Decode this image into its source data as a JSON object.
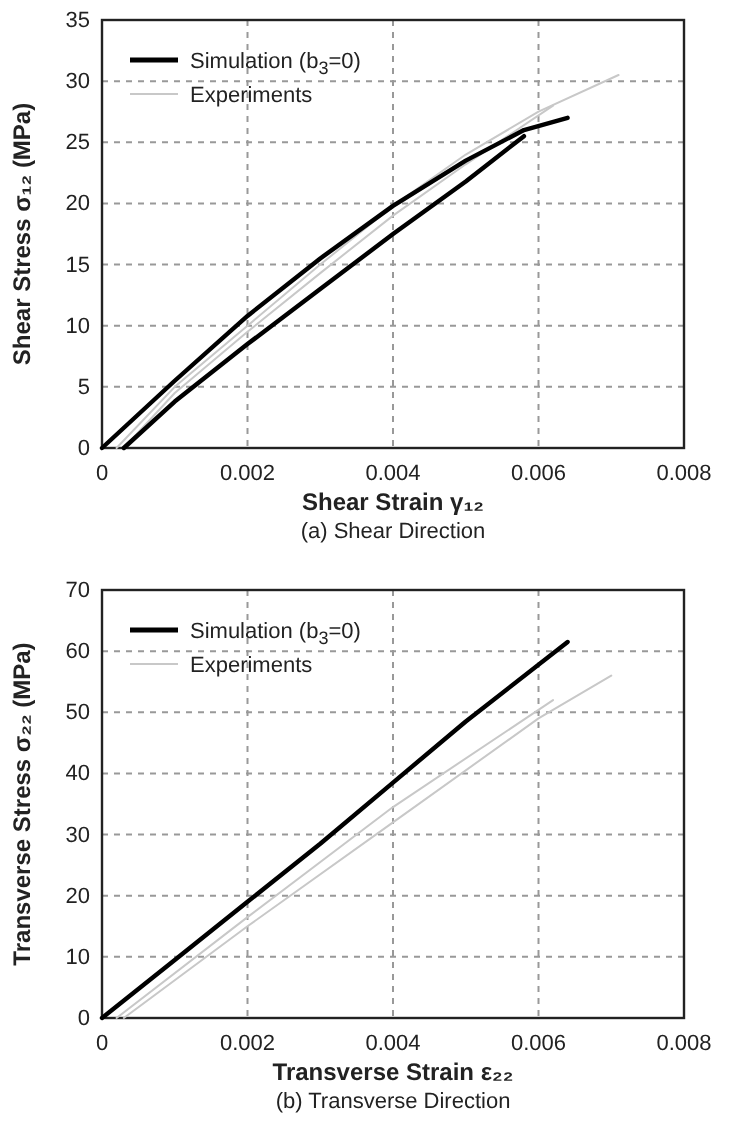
{
  "chart_data": [
    {
      "type": "line",
      "title": "(a) Shear Direction",
      "xlabel": "Shear Strain γ₁₂",
      "ylabel": "Shear Stress σ₁₂ (MPa)",
      "xlim": [
        0,
        0.008
      ],
      "ylim": [
        0,
        35
      ],
      "xticks": [
        0,
        0.002,
        0.004,
        0.006,
        0.008
      ],
      "yticks": [
        0,
        5,
        10,
        15,
        20,
        25,
        30,
        35
      ],
      "grid": true,
      "legend": "top left",
      "marker": "none",
      "line_style": "solid",
      "series": [
        {
          "name": "Simulation (b$_{3}$=0)",
          "color": "#000000",
          "x": [
            0,
            0.001,
            0.002,
            0.003,
            0.004,
            0.005,
            0.0058,
            0.0064
          ],
          "values": [
            0,
            5.5,
            10.8,
            15.5,
            19.8,
            23.5,
            26,
            27
          ]
        },
        {
          "color": "#000000",
          "x": [
            0.0003,
            0.001,
            0.002,
            0.003,
            0.004,
            0.005,
            0.0058
          ],
          "values": [
            0,
            3.8,
            8.5,
            13,
            17.5,
            21.8,
            25.5
          ]
        },
        {
          "name": "Experiments",
          "color": "#c8c8c8",
          "x": [
            0.0002,
            0.001,
            0.002,
            0.003,
            0.004,
            0.005,
            0.006,
            0.0071
          ],
          "values": [
            0,
            5,
            10,
            15,
            19.8,
            24,
            27.5,
            30.5
          ]
        },
        {
          "color": "#c8c8c8",
          "x": [
            0.0003,
            0.001,
            0.002,
            0.003,
            0.004,
            0.005,
            0.0062
          ],
          "values": [
            0,
            4.5,
            9.5,
            14.3,
            19,
            23.2,
            28
          ]
        }
      ]
    },
    {
      "type": "line",
      "title": "(b) Transverse Direction",
      "xlabel": "Transverse Strain ε₂₂",
      "ylabel": "Transverse Stress σ₂₂ (MPa)",
      "xlim": [
        0,
        0.008
      ],
      "ylim": [
        0,
        70
      ],
      "xticks": [
        0,
        0.002,
        0.004,
        0.006,
        0.008
      ],
      "yticks": [
        0,
        10,
        20,
        30,
        40,
        50,
        60,
        70
      ],
      "grid": true,
      "legend": "top left",
      "marker": "none",
      "line_style": "solid",
      "series": [
        {
          "name": "Simulation (b$_{3}$=0)",
          "color": "#000000",
          "x": [
            0,
            0.001,
            0.002,
            0.003,
            0.004,
            0.005,
            0.0064
          ],
          "values": [
            0,
            9.5,
            19,
            28.5,
            38.5,
            48.5,
            61.5
          ]
        },
        {
          "name": "Experiments",
          "color": "#c8c8c8",
          "x": [
            0.0002,
            0.002,
            0.004,
            0.0062
          ],
          "values": [
            0,
            16.5,
            34.5,
            52
          ]
        },
        {
          "color": "#c8c8c8",
          "x": [
            0.0003,
            0.002,
            0.004,
            0.006,
            0.007
          ],
          "values": [
            0,
            15,
            32,
            49,
            56
          ]
        }
      ]
    }
  ]
}
